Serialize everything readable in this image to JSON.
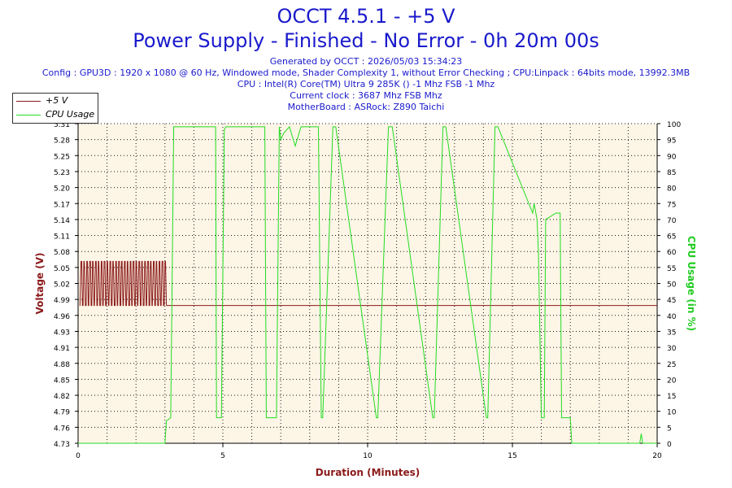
{
  "header": {
    "title_line1": "OCCT 4.5.1 - +5 V",
    "title_line2": "Power Supply - Finished - No Error - 0h 20m 00s",
    "generated": "Generated by OCCT : 2026/05/03 15:34:23",
    "config": "Config : GPU3D : 1920 x 1080 @ 60 Hz, Windowed mode, Shader Complexity 1, without Error Checking ; CPU:Linpack : 64bits mode, 13992.3MB",
    "cpu": "CPU : Intel(R) Core(TM) Ultra 9 285K () -1 Mhz FSB -1 Mhz",
    "clock": "Current clock : 3687 Mhz FSB  Mhz",
    "motherboard": "MotherBoard : ASRock: Z890 Taichi"
  },
  "colors": {
    "voltage": "#8b1a1a",
    "cpu": "#22dd22",
    "title": "#1a1acc",
    "plot_bg": "#fdf5e6",
    "grid": "#1a1a1a"
  },
  "chart_data": {
    "type": "line",
    "xlabel": "Duration (Minutes)",
    "ylabel_left": "Voltage (V)",
    "ylabel_right": "CPU Usage (in %)",
    "xlim": [
      0,
      20
    ],
    "ylim_left": [
      4.73,
      5.31
    ],
    "ylim_right": [
      0,
      100
    ],
    "x_ticks": [
      0,
      5,
      10,
      15,
      20
    ],
    "y_ticks_left": [
      4.73,
      4.76,
      4.79,
      4.82,
      4.85,
      4.88,
      4.91,
      4.93,
      4.96,
      4.99,
      5.02,
      5.05,
      5.08,
      5.11,
      5.14,
      5.17,
      5.2,
      5.23,
      5.25,
      5.28,
      5.31
    ],
    "y_ticks_right": [
      0,
      5,
      10,
      15,
      20,
      25,
      30,
      35,
      40,
      45,
      50,
      55,
      60,
      65,
      70,
      75,
      80,
      85,
      90,
      95,
      100
    ],
    "grid": true,
    "legend": "top-left",
    "series": [
      {
        "name": "+5 V",
        "axis": "left",
        "color": "#8b1a1a",
        "oscillation": {
          "x_start": 0.05,
          "x_end": 3.05,
          "low": 4.98,
          "high": 5.06,
          "switches": 60
        },
        "x": [
          3.05,
          20
        ],
        "y": [
          4.98,
          4.98
        ]
      },
      {
        "name": "CPU Usage",
        "axis": "right",
        "color": "#22dd22",
        "x": [
          0,
          3.0,
          3.05,
          3.2,
          3.3,
          3.3,
          4.75,
          4.78,
          4.95,
          5.05,
          5.1,
          6.45,
          6.5,
          6.85,
          6.95,
          7.0,
          7.1,
          7.3,
          7.5,
          7.7,
          7.9,
          8.3,
          8.4,
          8.45,
          8.8,
          8.85,
          8.9,
          10.3,
          10.35,
          10.72,
          10.8,
          10.85,
          12.25,
          12.3,
          12.6,
          12.65,
          12.7,
          14.1,
          14.15,
          14.4,
          14.45,
          14.5,
          15.7,
          15.75,
          15.85,
          15.9,
          16.0,
          16.1,
          16.15,
          16.5,
          16.55,
          16.65,
          16.7,
          17.0,
          17.05,
          17.1,
          19.4,
          19.45,
          19.5,
          20.0
        ],
        "y": [
          0,
          0,
          7,
          8,
          97,
          99,
          99,
          8,
          8,
          98,
          99,
          99,
          8,
          8,
          99,
          95,
          97,
          99,
          93,
          99,
          99,
          99,
          8,
          8,
          99,
          99,
          99,
          8,
          8,
          99,
          99,
          99,
          8,
          8,
          99,
          99,
          99,
          8,
          8,
          99,
          99,
          99,
          72,
          75,
          70,
          60,
          8,
          8,
          70,
          72,
          72,
          72,
          8,
          8,
          0,
          0,
          0,
          3,
          0,
          0
        ]
      }
    ]
  }
}
